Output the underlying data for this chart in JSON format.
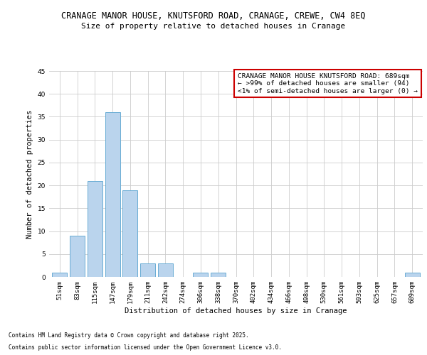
{
  "title_line1": "CRANAGE MANOR HOUSE, KNUTSFORD ROAD, CRANAGE, CREWE, CW4 8EQ",
  "title_line2": "Size of property relative to detached houses in Cranage",
  "xlabel": "Distribution of detached houses by size in Cranage",
  "ylabel": "Number of detached properties",
  "categories": [
    "51sqm",
    "83sqm",
    "115sqm",
    "147sqm",
    "179sqm",
    "211sqm",
    "242sqm",
    "274sqm",
    "306sqm",
    "338sqm",
    "370sqm",
    "402sqm",
    "434sqm",
    "466sqm",
    "498sqm",
    "530sqm",
    "561sqm",
    "593sqm",
    "625sqm",
    "657sqm",
    "689sqm"
  ],
  "values": [
    1,
    9,
    21,
    36,
    19,
    3,
    3,
    0,
    1,
    1,
    0,
    0,
    0,
    0,
    0,
    0,
    0,
    0,
    0,
    0,
    1
  ],
  "bar_color": "#bad4ed",
  "bar_edge_color": "#6aadd5",
  "ylim": [
    0,
    45
  ],
  "yticks": [
    0,
    5,
    10,
    15,
    20,
    25,
    30,
    35,
    40,
    45
  ],
  "annotation_box_text_line1": "CRANAGE MANOR HOUSE KNUTSFORD ROAD: 689sqm",
  "annotation_box_text_line2": "← >99% of detached houses are smaller (94)",
  "annotation_box_text_line3": "<1% of semi-detached houses are larger (0) →",
  "annotation_box_edge_color": "#cc0000",
  "footer_line1": "Contains HM Land Registry data © Crown copyright and database right 2025.",
  "footer_line2": "Contains public sector information licensed under the Open Government Licence v3.0.",
  "background_color": "#ffffff",
  "grid_color": "#cccccc",
  "title1_fontsize": 8.5,
  "title2_fontsize": 8.0,
  "axis_label_fontsize": 7.5,
  "tick_fontsize": 6.5,
  "annotation_fontsize": 6.8,
  "footer_fontsize": 5.5
}
